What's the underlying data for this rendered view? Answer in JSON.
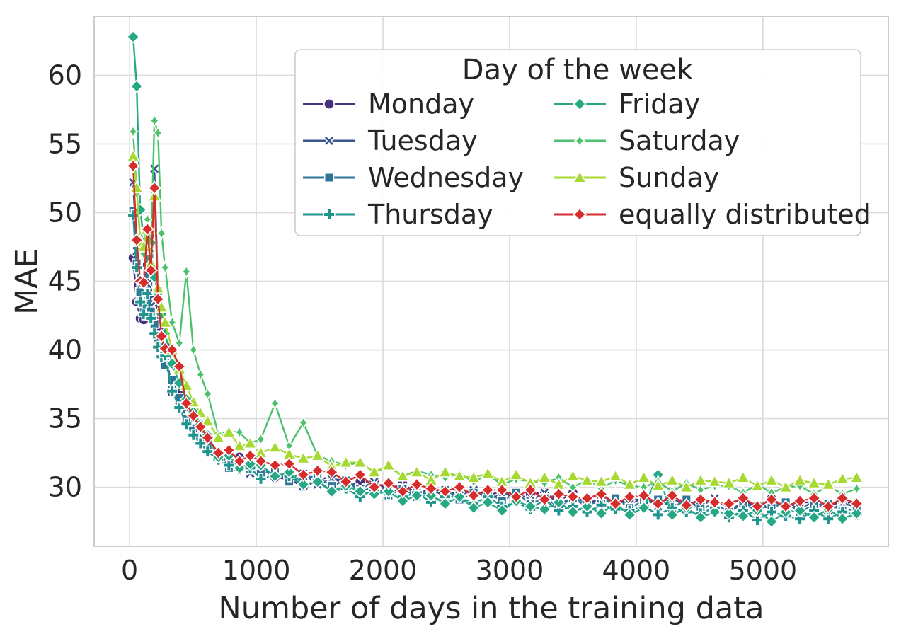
{
  "figure": {
    "background": "#ffffff",
    "text_color": "#262626",
    "grid_color": "#dcdcdc",
    "spine_color": "#cccccc",
    "legend_border_color": "#cccccc",
    "marker_edge_color": "#ffffff"
  },
  "chart_data": {
    "type": "line",
    "title": "",
    "xlabel": "Number of days in the training data",
    "ylabel": "MAE",
    "xlim": [
      -280,
      5990
    ],
    "ylim": [
      25.7,
      64.3
    ],
    "xticks": [
      0,
      1000,
      2000,
      3000,
      4000,
      5000
    ],
    "yticks": [
      30,
      35,
      40,
      45,
      50,
      55,
      60
    ],
    "grid": true,
    "legend": {
      "title": "Day of the week",
      "position": "upper center",
      "columns": 2
    },
    "x": [
      28,
      56,
      84,
      112,
      140,
      168,
      196,
      224,
      252,
      280,
      336,
      392,
      448,
      504,
      560,
      616,
      700,
      784,
      868,
      952,
      1036,
      1148,
      1260,
      1372,
      1484,
      1596,
      1708,
      1820,
      1932,
      2044,
      2156,
      2268,
      2380,
      2492,
      2604,
      2716,
      2828,
      2940,
      3052,
      3164,
      3276,
      3388,
      3500,
      3612,
      3724,
      3836,
      3948,
      4060,
      4172,
      4284,
      4396,
      4508,
      4620,
      4732,
      4844,
      4956,
      5068,
      5180,
      5292,
      5404,
      5516,
      5628,
      5740
    ],
    "series": [
      {
        "name": "Monday",
        "color": "#46327e",
        "marker": "circle",
        "values": [
          46.7,
          43.5,
          42.3,
          42.2,
          46.2,
          44.0,
          42.4,
          43.0,
          41.5,
          40.3,
          36.9,
          37.1,
          36.2,
          35.3,
          34.1,
          33.3,
          32.5,
          31.8,
          32.2,
          31.2,
          31.4,
          30.7,
          30.6,
          30.0,
          30.5,
          30.8,
          30.0,
          30.4,
          30.4,
          29.8,
          30.3,
          29.5,
          29.9,
          29.3,
          29.8,
          29.6,
          29.4,
          29.7,
          29.1,
          29.5,
          29.6,
          29.0,
          29.6,
          28.8,
          29.2,
          28.7,
          29.2,
          29.0,
          28.9,
          29.2,
          28.6,
          29.1,
          28.9,
          28.8,
          29.1,
          28.5,
          29.2,
          28.5,
          28.9,
          28.9,
          28.6,
          29.0,
          28.7
        ]
      },
      {
        "name": "Tuesday",
        "color": "#3a568c",
        "marker": "x",
        "values": [
          52.2,
          47.2,
          43.9,
          43.6,
          44.8,
          43.2,
          53.2,
          44.3,
          41.0,
          39.5,
          37.5,
          36.3,
          35.7,
          34.9,
          33.8,
          33.4,
          32.5,
          31.6,
          31.8,
          31.0,
          31.4,
          31.0,
          30.7,
          31.0,
          30.2,
          30.6,
          30.5,
          29.9,
          30.4,
          29.6,
          29.9,
          29.3,
          29.9,
          29.6,
          29.4,
          29.8,
          29.1,
          29.5,
          29.6,
          29.0,
          29.6,
          28.8,
          29.2,
          28.6,
          29.2,
          29.0,
          28.8,
          29.2,
          28.6,
          29.0,
          29.1,
          28.6,
          29.2,
          28.4,
          28.8,
          28.3,
          28.9,
          28.7,
          28.5,
          28.9,
          28.3,
          28.8,
          28.6
        ]
      },
      {
        "name": "Wednesday",
        "color": "#2e7596",
        "marker": "square",
        "values": [
          50.1,
          46.3,
          44.2,
          43.0,
          45.5,
          42.8,
          41.9,
          40.9,
          40.3,
          38.9,
          37.8,
          36.5,
          35.0,
          34.3,
          33.6,
          33.0,
          32.1,
          31.4,
          31.8,
          31.3,
          31.0,
          31.2,
          30.4,
          30.8,
          30.7,
          30.1,
          30.5,
          29.7,
          30.0,
          29.4,
          29.9,
          29.6,
          29.5,
          29.8,
          29.1,
          29.6,
          29.6,
          29.0,
          29.6,
          28.8,
          29.2,
          28.6,
          29.2,
          28.9,
          28.8,
          29.2,
          28.5,
          29.0,
          29.1,
          28.5,
          29.1,
          28.4,
          28.8,
          28.2,
          28.8,
          28.6,
          28.5,
          28.9,
          28.2,
          28.7,
          28.8,
          28.3,
          28.4
        ]
      },
      {
        "name": "Thursday",
        "color": "#1f948e",
        "marker": "plus",
        "values": [
          49.8,
          46.0,
          43.5,
          42.6,
          44.1,
          42.3,
          41.2,
          40.2,
          39.5,
          39.6,
          37.0,
          35.8,
          34.6,
          33.8,
          33.2,
          32.6,
          32.0,
          31.6,
          31.3,
          31.4,
          30.6,
          30.9,
          30.8,
          30.1,
          30.5,
          29.7,
          29.9,
          29.3,
          29.8,
          29.5,
          29.3,
          29.6,
          28.9,
          29.3,
          29.3,
          28.8,
          29.3,
          28.6,
          28.9,
          28.4,
          29.1,
          28.3,
          28.6,
          28.2,
          28.7,
          28.4,
          28.3,
          28.6,
          28.0,
          28.5,
          28.2,
          28.1,
          28.5,
          27.8,
          28.3,
          27.6,
          28.2,
          27.9,
          27.7,
          28.3,
          27.7,
          28.2,
          28.0
        ]
      },
      {
        "name": "Friday",
        "color": "#27a884",
        "marker": "diamond",
        "values": [
          62.8,
          59.2,
          50.2,
          48.1,
          46.6,
          47.8,
          45.3,
          44.1,
          42.6,
          41.2,
          39.0,
          37.6,
          36.4,
          35.5,
          34.6,
          33.8,
          32.2,
          32.3,
          31.4,
          31.7,
          31.6,
          30.8,
          31.1,
          30.2,
          30.4,
          29.7,
          30.1,
          29.7,
          29.5,
          29.7,
          29.0,
          29.4,
          29.4,
          28.8,
          29.3,
          28.5,
          28.9,
          28.3,
          29.0,
          28.6,
          28.4,
          28.9,
          28.2,
          28.6,
          28.1,
          28.8,
          28.0,
          28.5,
          30.9,
          28.0,
          28.5,
          27.8,
          28.2,
          28.1,
          27.9,
          28.3,
          27.5,
          28.2,
          28.3,
          27.8,
          28.4,
          27.7,
          28.1
        ]
      },
      {
        "name": "Saturday",
        "color": "#4bc16c",
        "marker": "star4-thin",
        "values": [
          55.9,
          51.4,
          48.3,
          47.0,
          49.5,
          47.2,
          56.7,
          55.8,
          48.5,
          46.0,
          42.0,
          40.5,
          45.7,
          40.0,
          38.2,
          36.8,
          33.9,
          34.1,
          34.0,
          33.2,
          33.5,
          36.1,
          33.0,
          34.7,
          32.3,
          31.9,
          31.6,
          31.8,
          31.1,
          31.5,
          30.8,
          31.2,
          30.9,
          30.7,
          31.0,
          30.4,
          30.9,
          30.2,
          30.6,
          30.4,
          30.3,
          30.7,
          30.0,
          30.5,
          29.9,
          30.5,
          30.1,
          30.0,
          30.4,
          29.7,
          30.3,
          29.8,
          30.1,
          30.1,
          29.6,
          30.2,
          29.6,
          30.0,
          30.1,
          29.5,
          30.1,
          29.5,
          29.9
        ]
      },
      {
        "name": "Sunday",
        "color": "#a6d932",
        "marker": "triangle",
        "values": [
          54.1,
          51.8,
          47.9,
          47.5,
          48.8,
          46.3,
          51.2,
          44.5,
          43.1,
          42.0,
          40.0,
          38.6,
          37.4,
          36.2,
          35.4,
          34.8,
          33.6,
          34.0,
          33.0,
          33.2,
          32.5,
          32.9,
          32.4,
          32.1,
          32.3,
          31.5,
          31.8,
          31.8,
          31.1,
          31.6,
          30.8,
          31.1,
          30.5,
          31.1,
          30.8,
          30.7,
          31.0,
          30.4,
          30.9,
          30.3,
          30.7,
          30.2,
          30.8,
          30.5,
          30.4,
          30.8,
          30.2,
          30.7,
          30.1,
          30.5,
          30.0,
          30.5,
          30.4,
          30.3,
          30.7,
          30.1,
          30.5,
          30.0,
          30.5,
          30.3,
          30.2,
          30.6,
          30.7
        ]
      },
      {
        "name": "equally distributed",
        "color": "#d62c2c",
        "marker": "star4",
        "values": [
          53.4,
          48.0,
          45.0,
          44.9,
          48.8,
          45.8,
          51.8,
          43.7,
          41.0,
          40.1,
          40.0,
          38.8,
          36.1,
          35.2,
          34.4,
          33.6,
          32.5,
          32.7,
          31.9,
          32.3,
          31.9,
          31.6,
          31.7,
          30.9,
          31.2,
          31.1,
          30.4,
          30.9,
          30.0,
          30.3,
          29.7,
          30.2,
          29.9,
          29.7,
          30.0,
          29.4,
          29.8,
          29.8,
          29.3,
          29.8,
          29.1,
          29.5,
          29.3,
          29.2,
          29.5,
          28.8,
          29.3,
          29.4,
          28.8,
          29.4,
          28.7,
          29.1,
          28.9,
          28.8,
          29.2,
          28.6,
          29.1,
          28.6,
          29.0,
          29.2,
          28.6,
          29.2,
          28.8
        ]
      }
    ]
  }
}
